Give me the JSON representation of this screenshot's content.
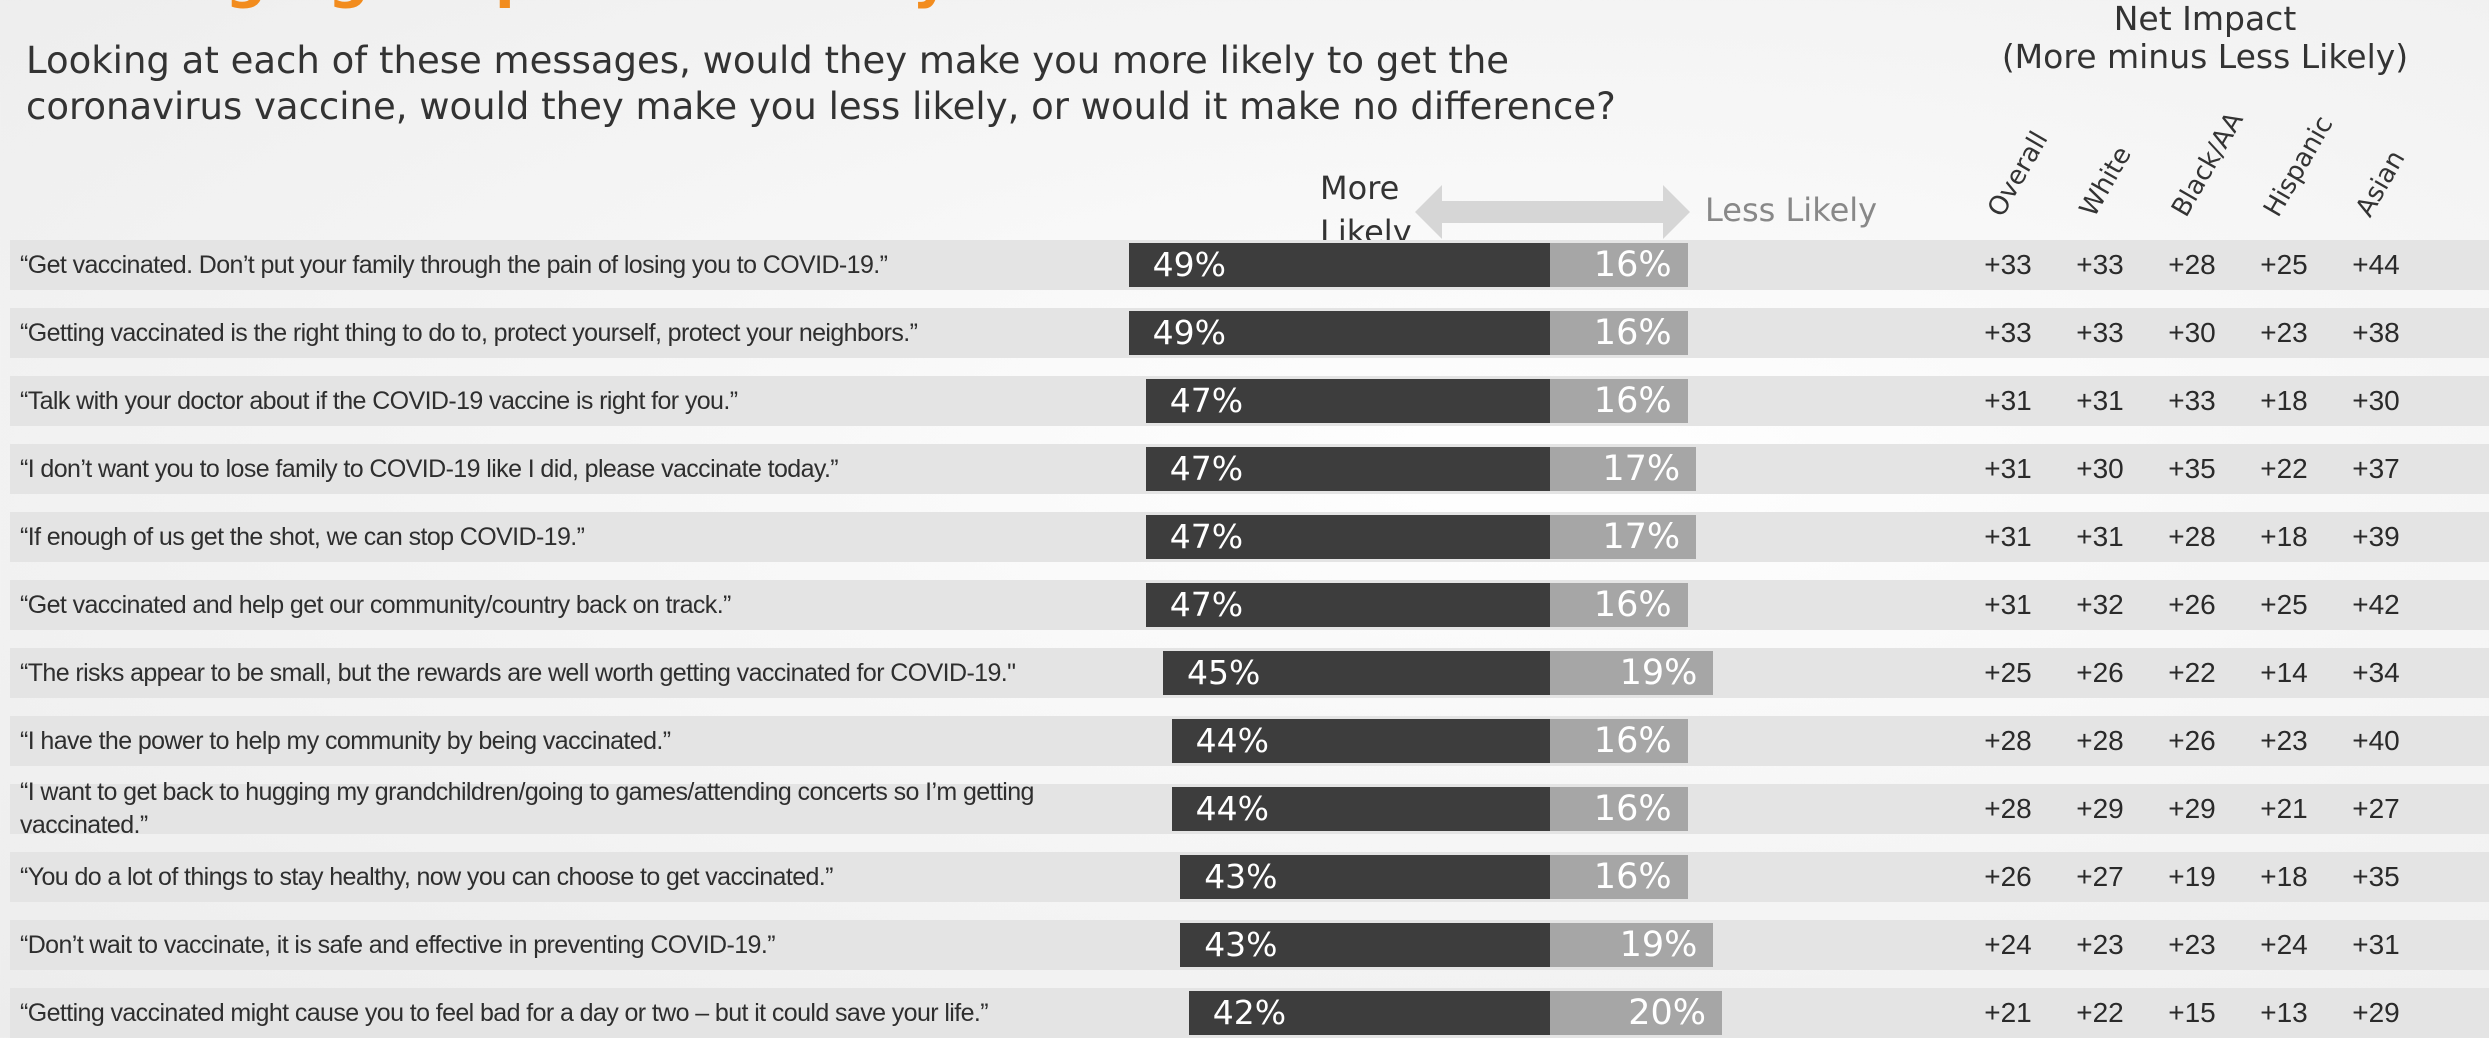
{
  "title_fragment": "Messaging: Impact on Likely to Get Vaccinated",
  "question": "Looking at each of these messages, would they make you more likely to get the coronavirus vaccine, would they make you less likely, or would it make no difference?",
  "net_header": {
    "line1": "Net Impact",
    "line2": "(More minus Less Likely)"
  },
  "columns": [
    "Overall",
    "White",
    "Black/AA",
    "Hispanic",
    "Asian"
  ],
  "labels": {
    "more": "More Likely",
    "less": "Less Likely"
  },
  "colors": {
    "more_bar": "#3d3d3d",
    "less_bar": "#a6a6a6",
    "row_band": "#e4e4e4",
    "title": "#f28c1e"
  },
  "chart_data": {
    "type": "bar",
    "orientation": "horizontal-diverging",
    "series": [
      {
        "name": "More Likely",
        "values": [
          49,
          49,
          47,
          47,
          47,
          47,
          45,
          44,
          44,
          43,
          43,
          42
        ]
      },
      {
        "name": "Less Likely",
        "values": [
          16,
          16,
          16,
          17,
          17,
          16,
          19,
          16,
          16,
          16,
          19,
          20
        ]
      }
    ],
    "rows": [
      {
        "message": "“Get vaccinated. Don’t put your family through the pain of losing you to COVID-19.”",
        "more": 49,
        "less": 16,
        "more_label": "49%",
        "less_label": "16%",
        "net": [
          "+33",
          "+33",
          "+28",
          "+25",
          "+44"
        ]
      },
      {
        "message": "“Getting vaccinated is the right thing to do to,  protect yourself, protect your neighbors.”",
        "more": 49,
        "less": 16,
        "more_label": "49%",
        "less_label": "16%",
        "net": [
          "+33",
          "+33",
          "+30",
          "+23",
          "+38"
        ]
      },
      {
        "message": "“Talk with your doctor about if the COVID-19 vaccine is right for you.”",
        "more": 47,
        "less": 16,
        "more_label": "47%",
        "less_label": "16%",
        "net": [
          "+31",
          "+31",
          "+33",
          "+18",
          "+30"
        ]
      },
      {
        "message": "“I don’t want you to lose family to COVID-19 like I did, please vaccinate today.”",
        "more": 47,
        "less": 17,
        "more_label": "47%",
        "less_label": "17%",
        "net": [
          "+31",
          "+30",
          "+35",
          "+22",
          "+37"
        ]
      },
      {
        "message": "“If enough of us get the shot, we can stop COVID-19.”",
        "more": 47,
        "less": 17,
        "more_label": "47%",
        "less_label": "17%",
        "net": [
          "+31",
          "+31",
          "+28",
          "+18",
          "+39"
        ]
      },
      {
        "message": "“Get vaccinated and help get our community/country back on track.”",
        "more": 47,
        "less": 16,
        "more_label": "47%",
        "less_label": "16%",
        "net": [
          "+31",
          "+32",
          "+26",
          "+25",
          "+42"
        ]
      },
      {
        "message": "“The risks appear to be small, but the rewards are well worth getting vaccinated for COVID-19.\"",
        "more": 45,
        "less": 19,
        "more_label": "45%",
        "less_label": "19%",
        "net": [
          "+25",
          "+26",
          "+22",
          "+14",
          "+34"
        ]
      },
      {
        "message": "“I have the power to help my community by being vaccinated.”",
        "more": 44,
        "less": 16,
        "more_label": "44%",
        "less_label": "16%",
        "net": [
          "+28",
          "+28",
          "+26",
          "+23",
          "+40"
        ]
      },
      {
        "message": "“I want to get back to hugging my grandchildren/going to games/attending concerts so I’m getting vaccinated.”",
        "more": 44,
        "less": 16,
        "more_label": "44%",
        "less_label": "16%",
        "net": [
          "+28",
          "+29",
          "+29",
          "+21",
          "+27"
        ]
      },
      {
        "message": "“You do a lot of things to stay healthy, now you can choose to get vaccinated.”",
        "more": 43,
        "less": 16,
        "more_label": "43%",
        "less_label": "16%",
        "net": [
          "+26",
          "+27",
          "+19",
          "+18",
          "+35"
        ]
      },
      {
        "message": "“Don’t wait to vaccinate, it is safe and effective in preventing COVID-19.”",
        "more": 43,
        "less": 19,
        "more_label": "43%",
        "less_label": "19%",
        "net": [
          "+24",
          "+23",
          "+23",
          "+24",
          "+31"
        ]
      },
      {
        "message": "“Getting vaccinated might cause you to feel bad for a day or two – but it could save your life.”",
        "more": 42,
        "less": 20,
        "more_label": "42%",
        "less_label": "20%",
        "net": [
          "+21",
          "+22",
          "+15",
          "+13",
          "+29"
        ]
      }
    ]
  }
}
